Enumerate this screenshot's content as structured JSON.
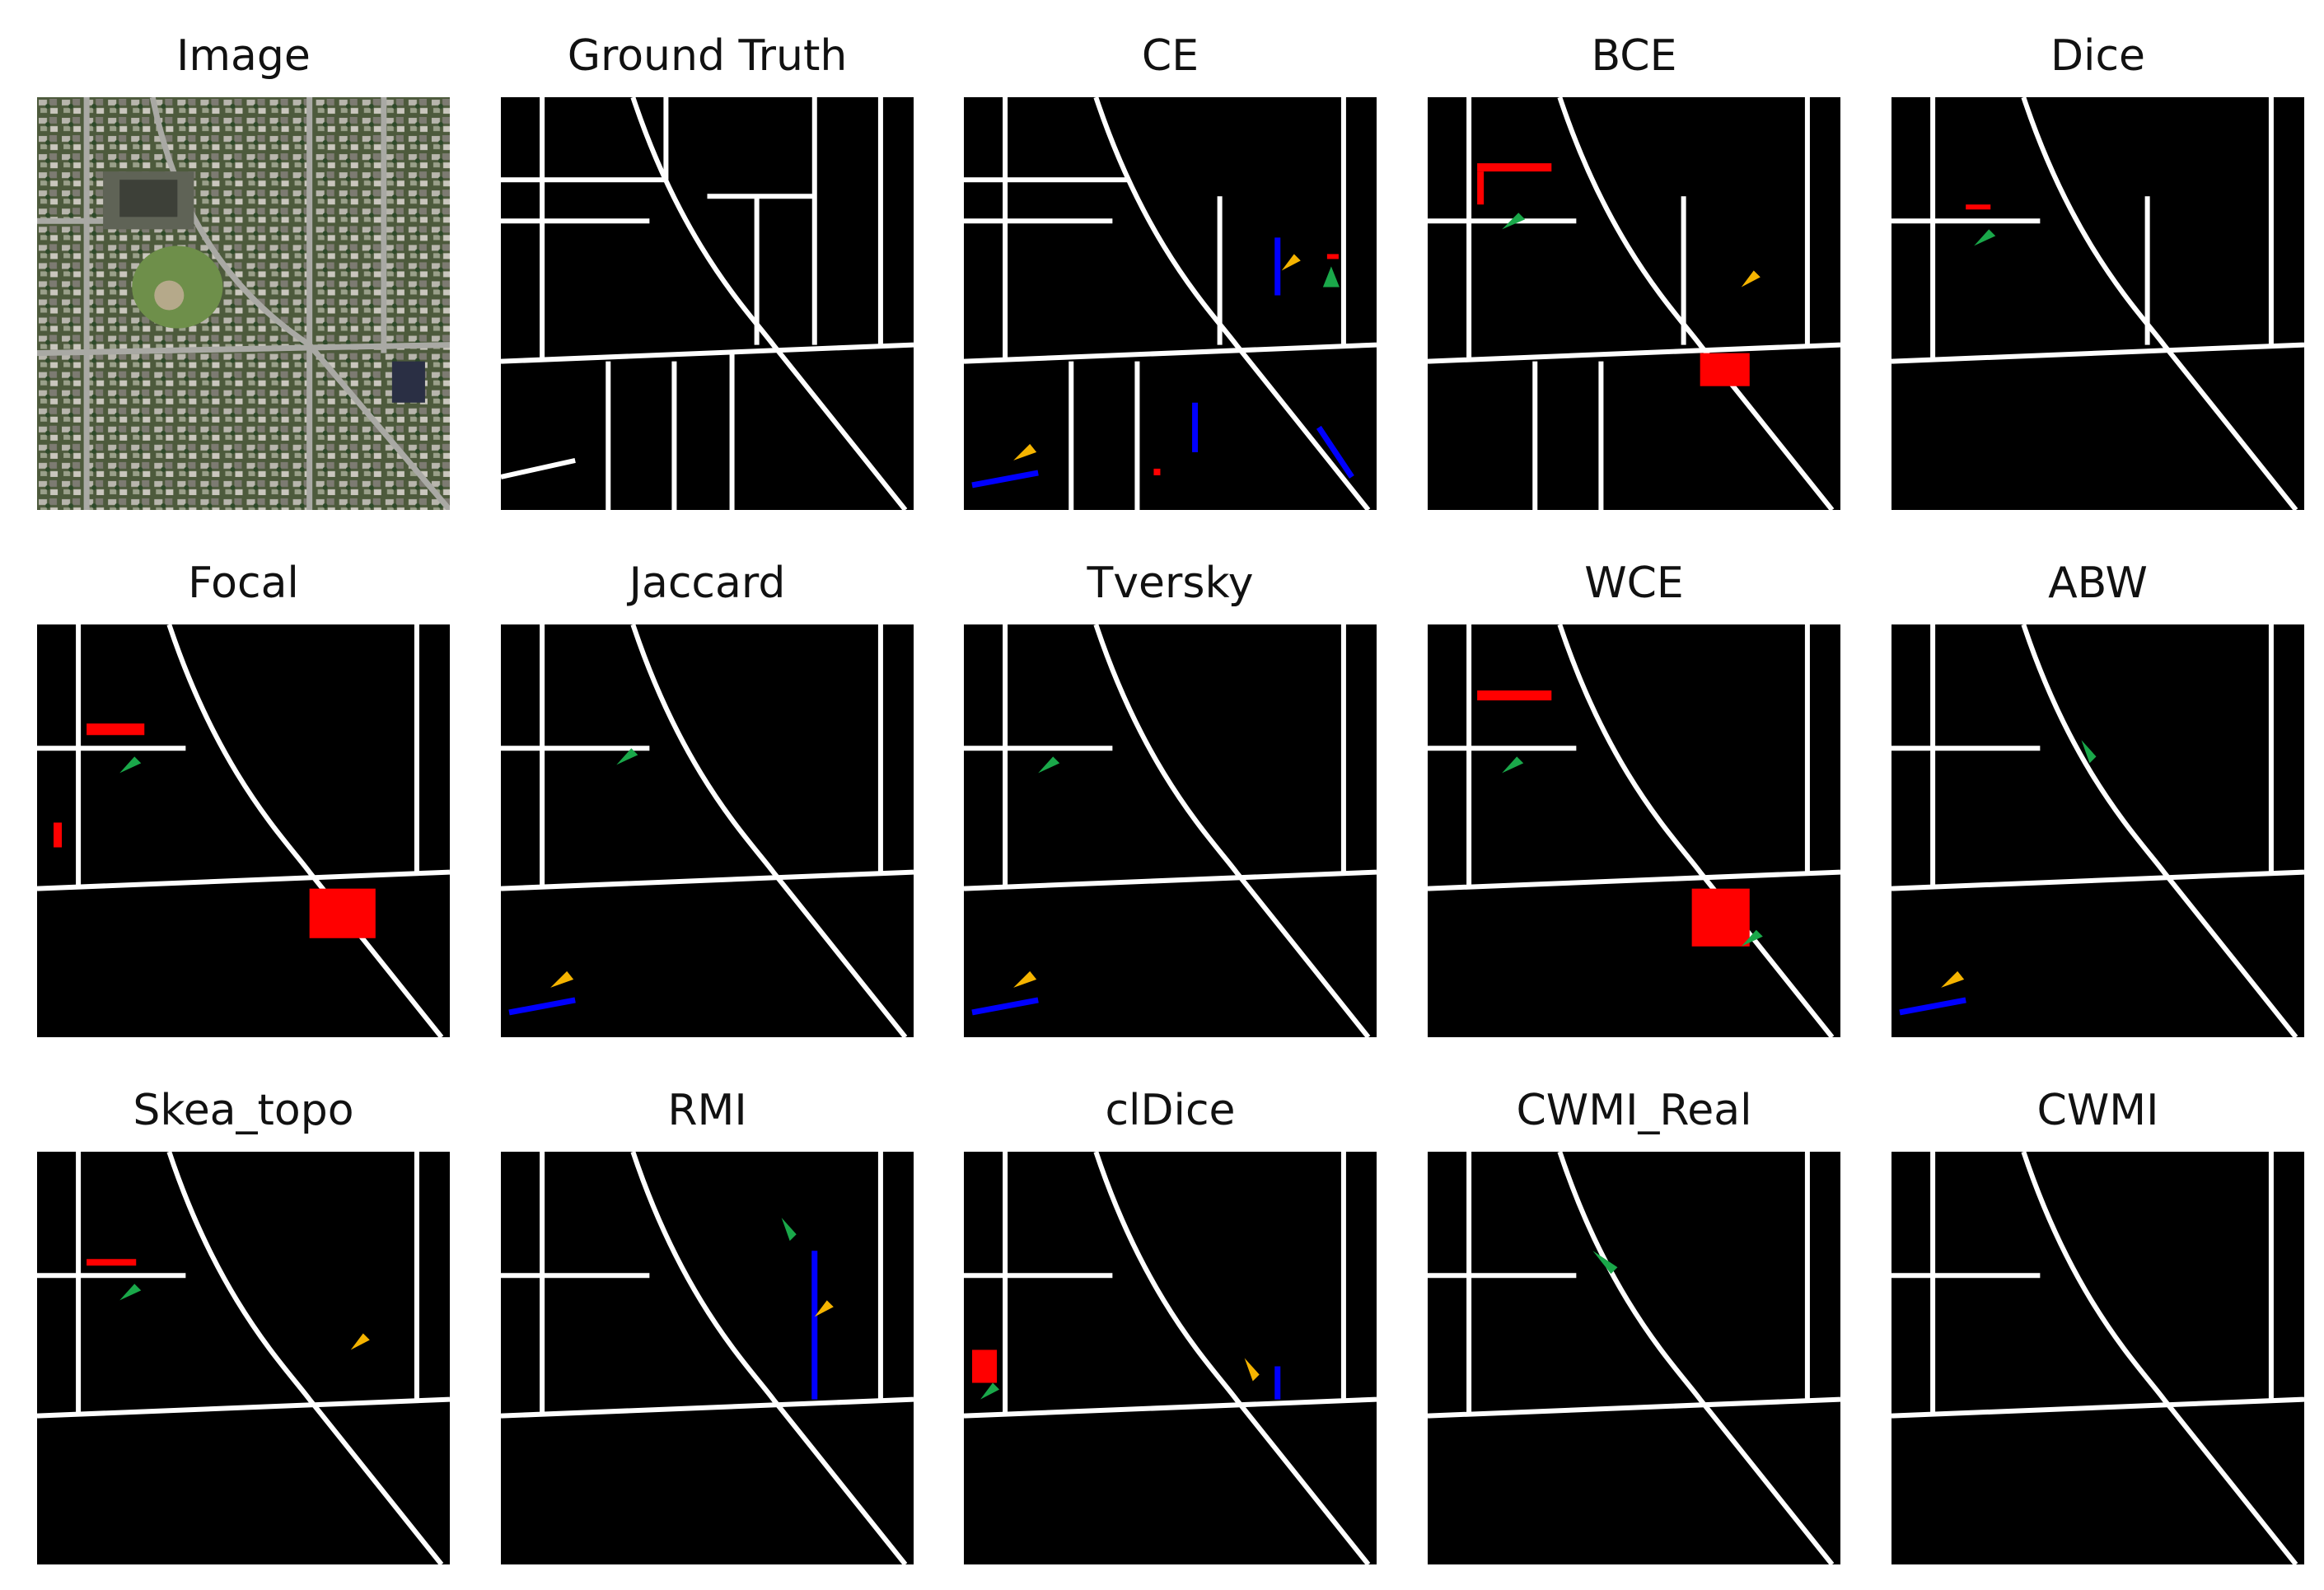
{
  "figure": {
    "panels": [
      {
        "title": "Image"
      },
      {
        "title": "Ground Truth"
      },
      {
        "title": "CE"
      },
      {
        "title": "BCE"
      },
      {
        "title": "Dice"
      },
      {
        "title": "Focal"
      },
      {
        "title": "Jaccard"
      },
      {
        "title": "Tversky"
      },
      {
        "title": "WCE"
      },
      {
        "title": "ABW"
      },
      {
        "title": "Skea_topo"
      },
      {
        "title": "RMI"
      },
      {
        "title": "clDice"
      },
      {
        "title": "CWMI_Real"
      },
      {
        "title": "CWMI"
      }
    ],
    "legend_colors": {
      "true_positive": "#ffffff",
      "false_positive": "#ff0000",
      "false_negative": "#0000ff",
      "background": "#000000",
      "arrow_false_positive": "#1aa84a",
      "arrow_false_negative": "#f5b400"
    }
  }
}
